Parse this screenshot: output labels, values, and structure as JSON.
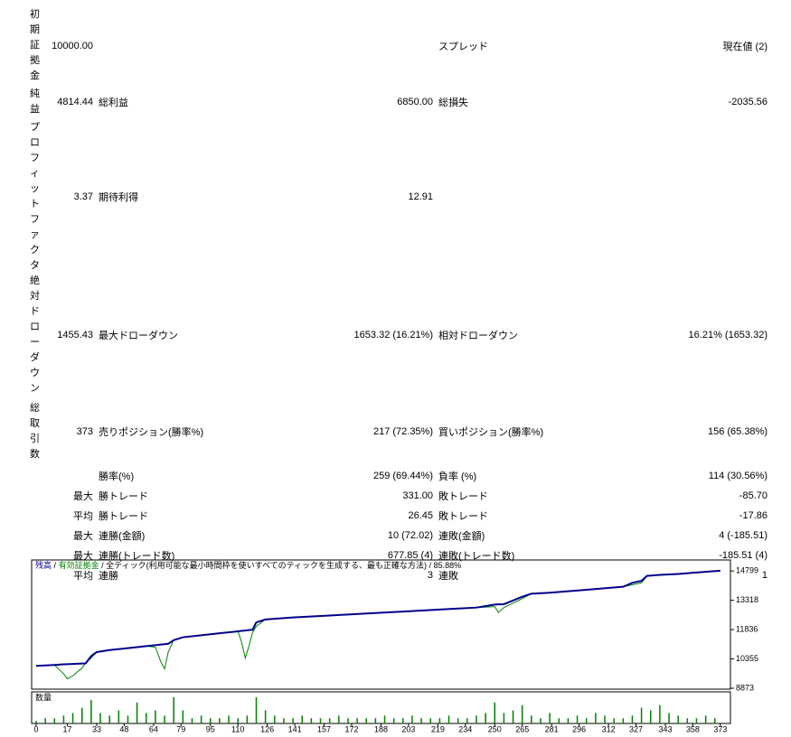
{
  "table": {
    "rows": [
      [
        "初期証拠金",
        "10000.00",
        null,
        null,
        "スプレッド",
        "現在値 (2)"
      ],
      [
        "純益",
        "4814.44",
        "総利益",
        "6850.00",
        "総損失",
        "-2035.56"
      ],
      [
        "プロフィットファクタ",
        "3.37",
        "期待利得",
        "12.91",
        null,
        null
      ],
      [
        "絶対ドローダウン",
        "1455.43",
        "最大ドローダウン",
        "1653.32 (16.21%)",
        "相対ドローダウン",
        "16.21% (1653.32)"
      ],
      [
        "総取引数",
        "373",
        "売りポジション(勝率%)",
        "217 (72.35%)",
        "買いポジション(勝率%)",
        "156 (65.38%)"
      ],
      [
        null,
        null,
        "勝率(%)",
        "259 (69.44%)",
        "負率 (%)",
        "114 (30.56%)"
      ],
      [
        null,
        "最大",
        "勝トレード",
        "331.00",
        "敗トレード",
        "-85.70"
      ],
      [
        null,
        "平均",
        "勝トレード",
        "26.45",
        "敗トレード",
        "-17.86"
      ],
      [
        null,
        "最大",
        "連勝(金額)",
        "10 (72.02)",
        "連敗(金額)",
        "4 (-185.51)"
      ],
      [
        null,
        "最大",
        "連勝(トレード数)",
        "677.85 (4)",
        "連敗(トレード数)",
        "-185.51 (4)"
      ],
      [
        null,
        "平均",
        "連勝",
        "3",
        "連敗",
        "1"
      ]
    ]
  },
  "chart_data": {
    "type": "line",
    "legend_separator": "/",
    "model": "全ティック(利用可能な最小時間枠を使いすべてのティックを生成する、最も正確な方法)",
    "quality": "85.88%",
    "x": [
      0,
      10,
      15,
      17,
      20,
      25,
      27,
      30,
      33,
      40,
      50,
      60,
      65,
      68,
      70,
      72,
      75,
      80,
      90,
      100,
      110,
      112,
      114,
      116,
      118,
      120,
      125,
      140,
      160,
      180,
      200,
      220,
      240,
      250,
      252,
      255,
      265,
      270,
      280,
      300,
      320,
      325,
      330,
      333,
      340,
      350,
      360,
      373
    ],
    "series": [
      {
        "name": "残高",
        "color": "#00008b",
        "values": [
          10000,
          10050,
          10080,
          10090,
          10100,
          10120,
          10130,
          10500,
          10700,
          10800,
          10900,
          11000,
          11050,
          11080,
          11100,
          11120,
          11300,
          11450,
          11550,
          11650,
          11750,
          11770,
          11790,
          11810,
          11830,
          12200,
          12350,
          12450,
          12550,
          12650,
          12750,
          12850,
          12950,
          13100,
          13110,
          13120,
          13500,
          13650,
          13700,
          13850,
          14000,
          14200,
          14300,
          14550,
          14600,
          14650,
          14720,
          14814.44
        ]
      },
      {
        "name": "有効証拠金",
        "color": "#008000",
        "values": [
          10000,
          10050,
          9600,
          9350,
          9500,
          9900,
          10150,
          10400,
          10700,
          10800,
          10900,
          11000,
          10950,
          10200,
          9850,
          10700,
          11300,
          11450,
          11550,
          11650,
          11750,
          11200,
          10400,
          11000,
          11700,
          12000,
          12350,
          12450,
          12550,
          12650,
          12750,
          12850,
          12950,
          13000,
          12700,
          12950,
          13400,
          13650,
          13700,
          13850,
          14000,
          14100,
          14200,
          14550,
          14600,
          14650,
          14720,
          14814.44
        ]
      }
    ],
    "xlim": [
      0,
      378
    ],
    "xticks": [
      0,
      17,
      33,
      48,
      64,
      79,
      95,
      110,
      126,
      141,
      157,
      172,
      188,
      203,
      219,
      234,
      250,
      265,
      281,
      296,
      312,
      327,
      343,
      358,
      373
    ],
    "ylim": [
      8873,
      15355
    ],
    "yticks": [
      8873,
      10355,
      11836,
      13318,
      14799
    ],
    "volume": {
      "name": "数量",
      "color": "#008000",
      "x": [
        0,
        5,
        10,
        15,
        20,
        25,
        30,
        35,
        40,
        45,
        50,
        55,
        60,
        65,
        70,
        75,
        80,
        85,
        90,
        95,
        100,
        105,
        110,
        115,
        120,
        125,
        130,
        135,
        140,
        145,
        150,
        155,
        160,
        165,
        170,
        175,
        180,
        185,
        190,
        195,
        200,
        205,
        210,
        215,
        220,
        225,
        230,
        235,
        240,
        245,
        250,
        255,
        260,
        265,
        270,
        275,
        280,
        285,
        290,
        295,
        300,
        305,
        310,
        315,
        320,
        325,
        330,
        335,
        340,
        345,
        350,
        355,
        360,
        365,
        370
      ],
      "values": [
        1,
        2,
        2,
        3,
        4,
        6,
        9,
        4,
        3,
        5,
        3,
        8,
        4,
        5,
        3,
        10,
        5,
        2,
        3,
        2,
        2,
        3,
        2,
        3,
        10,
        5,
        3,
        2,
        2,
        3,
        2,
        2,
        2,
        3,
        2,
        2,
        2,
        2,
        3,
        2,
        2,
        3,
        2,
        2,
        2,
        3,
        2,
        2,
        3,
        4,
        8,
        4,
        5,
        7,
        3,
        2,
        4,
        2,
        2,
        3,
        2,
        4,
        3,
        2,
        2,
        3,
        6,
        5,
        7,
        4,
        3,
        2,
        2,
        3,
        2
      ]
    }
  }
}
